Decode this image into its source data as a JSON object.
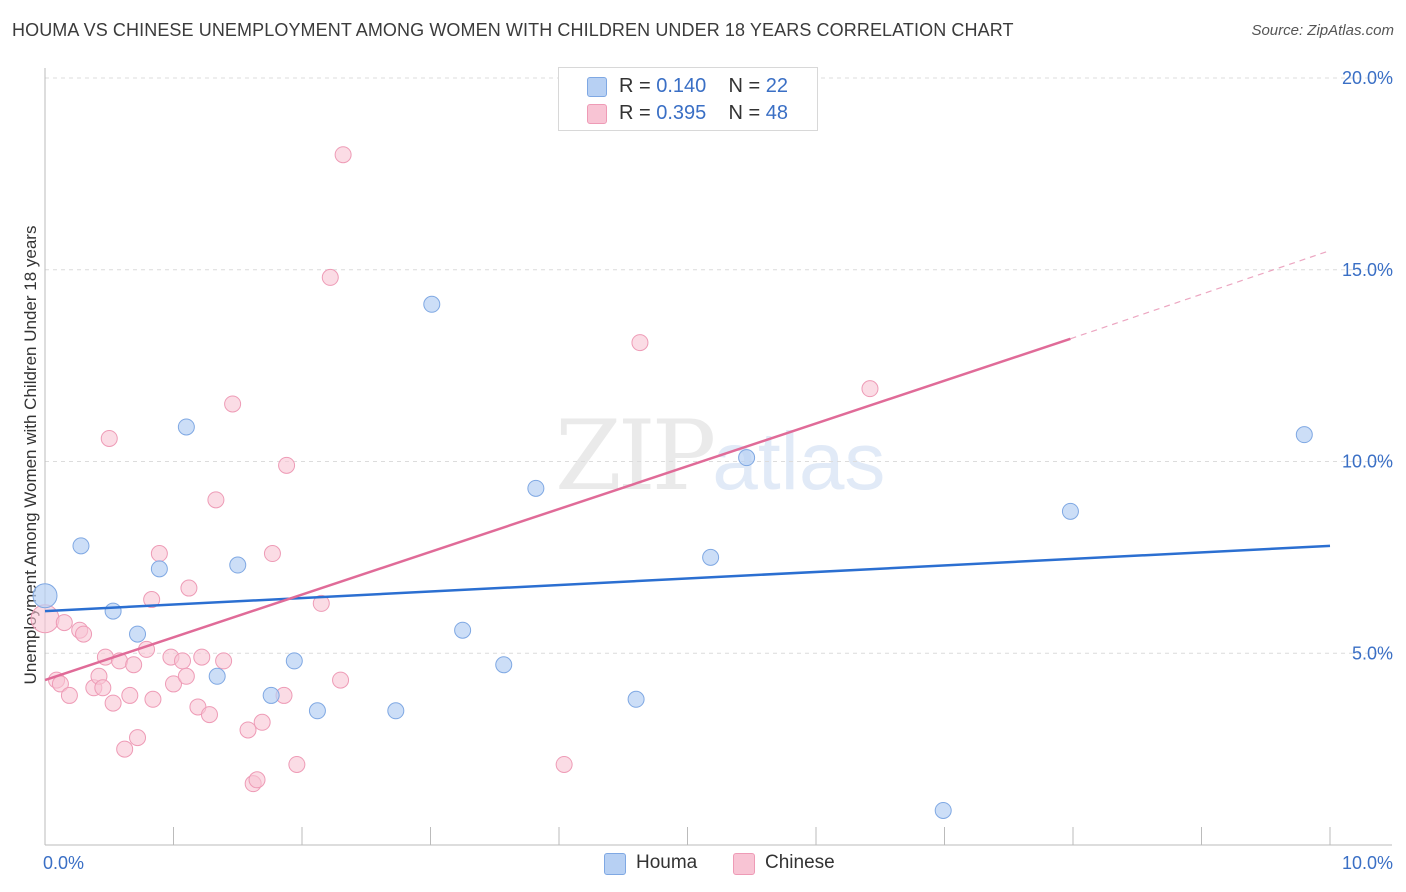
{
  "title": "HOUMA VS CHINESE UNEMPLOYMENT AMONG WOMEN WITH CHILDREN UNDER 18 YEARS CORRELATION CHART",
  "source": "Source: ZipAtlas.com",
  "watermark": {
    "zip": "ZIP",
    "atlas": "atlas"
  },
  "colors": {
    "houma_fill": "#b7d0f3",
    "houma_stroke": "#7fa8e3",
    "houma_line": "#2b6fd1",
    "chinese_fill": "#f8c4d4",
    "chinese_stroke": "#ee9bb6",
    "chinese_line": "#e06b98",
    "grid": "#dcdcdc",
    "axis_label": "#3a6fc5"
  },
  "legend": {
    "rows": [
      {
        "r_label": "R = ",
        "r_value": "0.140",
        "n_label": "N = ",
        "n_value": "22"
      },
      {
        "r_label": "R = ",
        "r_value": "0.395",
        "n_label": "N = ",
        "n_value": "48"
      }
    ],
    "series": [
      "Houma",
      "Chinese"
    ]
  },
  "chart_data": {
    "type": "scatter",
    "title": "HOUMA VS CHINESE UNEMPLOYMENT AMONG WOMEN WITH CHILDREN UNDER 18 YEARS CORRELATION CHART",
    "xlabel": "",
    "ylabel": "Unemployment Among Women with Children Under 18 years",
    "xlim": [
      0,
      10
    ],
    "ylim": [
      0,
      20
    ],
    "x_tick_labels": [
      "0.0%",
      "10.0%"
    ],
    "y_ticks": [
      5,
      10,
      15,
      20
    ],
    "y_tick_labels": [
      "5.0%",
      "10.0%",
      "15.0%",
      "20.0%"
    ],
    "grid": true,
    "series": [
      {
        "name": "Houma",
        "R": 0.14,
        "N": 22,
        "trend": {
          "x0": 0,
          "y0": 6.1,
          "x1": 10,
          "y1": 7.8
        },
        "points": [
          [
            0.0,
            6.5
          ],
          [
            0.28,
            7.8
          ],
          [
            0.53,
            6.1
          ],
          [
            0.72,
            5.5
          ],
          [
            0.89,
            7.2
          ],
          [
            1.1,
            10.9
          ],
          [
            1.34,
            4.4
          ],
          [
            1.5,
            7.3
          ],
          [
            1.76,
            3.9
          ],
          [
            1.94,
            4.8
          ],
          [
            2.12,
            3.5
          ],
          [
            2.73,
            3.5
          ],
          [
            3.01,
            14.1
          ],
          [
            3.25,
            5.6
          ],
          [
            3.57,
            4.7
          ],
          [
            3.82,
            9.3
          ],
          [
            4.6,
            3.8
          ],
          [
            5.18,
            7.5
          ],
          [
            5.46,
            10.1
          ],
          [
            6.99,
            0.9
          ],
          [
            7.98,
            8.7
          ],
          [
            9.8,
            10.7
          ]
        ]
      },
      {
        "name": "Chinese",
        "R": 0.395,
        "N": 48,
        "trend": {
          "x0": 0,
          "y0": 4.3,
          "x1": 7.98,
          "y1": 13.2,
          "dashed_to_x": 10,
          "dashed_to_y": 15.5
        },
        "points": [
          [
            0.0,
            5.9
          ],
          [
            0.09,
            4.3
          ],
          [
            0.12,
            4.2
          ],
          [
            0.15,
            5.8
          ],
          [
            0.19,
            3.9
          ],
          [
            0.27,
            5.6
          ],
          [
            0.3,
            5.5
          ],
          [
            0.38,
            4.1
          ],
          [
            0.42,
            4.4
          ],
          [
            0.45,
            4.1
          ],
          [
            0.47,
            4.9
          ],
          [
            0.5,
            10.6
          ],
          [
            0.53,
            3.7
          ],
          [
            0.58,
            4.8
          ],
          [
            0.62,
            2.5
          ],
          [
            0.66,
            3.9
          ],
          [
            0.69,
            4.7
          ],
          [
            0.72,
            2.8
          ],
          [
            0.79,
            5.1
          ],
          [
            0.83,
            6.4
          ],
          [
            0.84,
            3.8
          ],
          [
            0.89,
            7.6
          ],
          [
            0.98,
            4.9
          ],
          [
            1.0,
            4.2
          ],
          [
            1.07,
            4.8
          ],
          [
            1.1,
            4.4
          ],
          [
            1.12,
            6.7
          ],
          [
            1.19,
            3.6
          ],
          [
            1.22,
            4.9
          ],
          [
            1.28,
            3.4
          ],
          [
            1.33,
            9.0
          ],
          [
            1.39,
            4.8
          ],
          [
            1.46,
            11.5
          ],
          [
            1.58,
            3.0
          ],
          [
            1.62,
            1.6
          ],
          [
            1.65,
            1.7
          ],
          [
            1.69,
            3.2
          ],
          [
            1.77,
            7.6
          ],
          [
            1.86,
            3.9
          ],
          [
            1.88,
            9.9
          ],
          [
            1.96,
            2.1
          ],
          [
            2.15,
            6.3
          ],
          [
            2.22,
            14.8
          ],
          [
            2.3,
            4.3
          ],
          [
            2.32,
            18.0
          ],
          [
            4.04,
            2.1
          ],
          [
            4.63,
            13.1
          ],
          [
            6.42,
            11.9
          ]
        ]
      }
    ]
  }
}
